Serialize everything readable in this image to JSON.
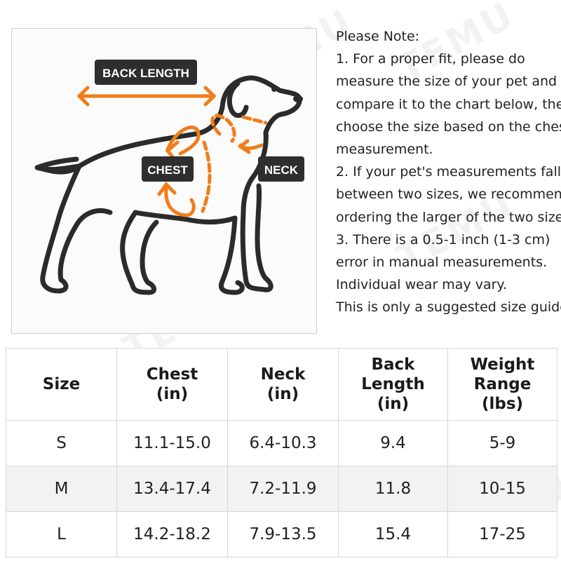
{
  "watermark": "TEMU",
  "diagram": {
    "back_length_label": "BACK LENGTH",
    "chest_label": "CHEST",
    "neck_label": "NECK",
    "accent_color": "#f07d1a",
    "label_bg_color": "#2e2e2e"
  },
  "note": {
    "lines": [
      "Please Note:",
      "1. For a proper fit, please do",
      "measure the size of your pet and",
      "compare it to the chart below, then",
      "choose the size based on the chest",
      "measurement.",
      "2. If your pet's measurements fall",
      "between two sizes, we recommend",
      "ordering the larger of the two sizes.",
      "3. There is a 0.5-1 inch (1-3 cm)",
      "error in manual measurements.",
      "Individual wear may vary.",
      "This is only a suggested size guide."
    ]
  },
  "table": {
    "headers": [
      [
        "Size"
      ],
      [
        "Chest",
        "(in)"
      ],
      [
        "Neck",
        "(in)"
      ],
      [
        "Back",
        "Length",
        "(in)"
      ],
      [
        "Weight",
        "Range",
        "(lbs)"
      ]
    ],
    "rows": [
      [
        "S",
        "11.1-15.0",
        "6.4-10.3",
        "9.4",
        "5-9"
      ],
      [
        "M",
        "13.4-17.4",
        "7.2-11.9",
        "11.8",
        "10-15"
      ],
      [
        "L",
        "14.2-18.2",
        "7.9-13.5",
        "15.4",
        "17-25"
      ]
    ]
  }
}
